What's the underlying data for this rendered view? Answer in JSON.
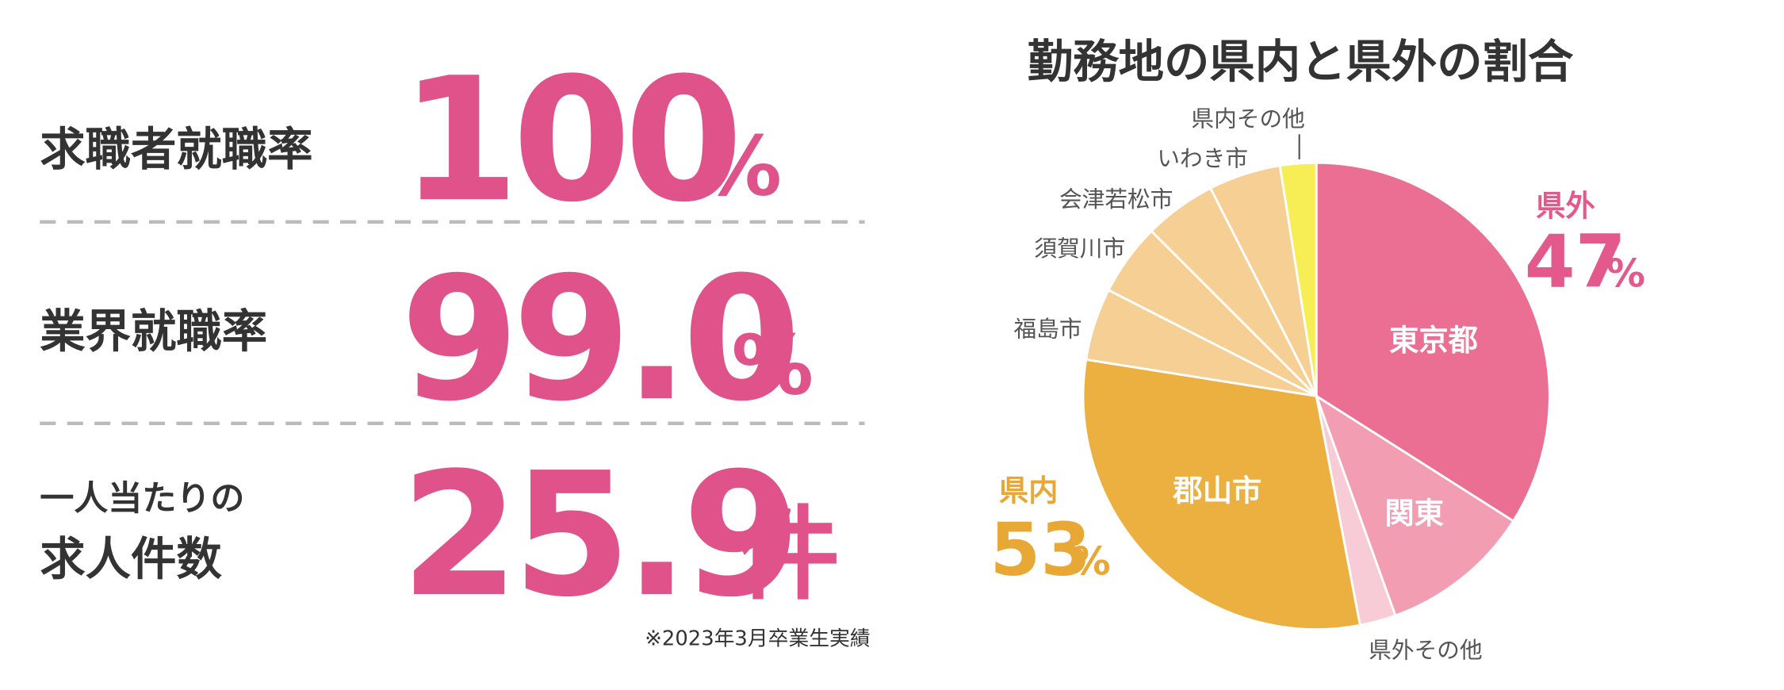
{
  "stats": [
    {
      "label_lines": [
        "求職者就職率"
      ],
      "value": "100",
      "unit": "%"
    },
    {
      "label_lines": [
        "業界就職率"
      ],
      "value": "99.0",
      "unit": "%"
    },
    {
      "label_lines": [
        "一人当たりの",
        "求人件数"
      ],
      "value": "25.9",
      "unit": "件"
    }
  ],
  "note": "※2023年3月卒業生実績",
  "chart_data": {
    "type": "pie",
    "title": "勤務地の県内と県外の割合",
    "categories": [
      "東京都",
      "関東",
      "県外その他",
      "郡山市",
      "福島市",
      "須賀川市",
      "会津若松市",
      "いわき市",
      "県内その他"
    ],
    "values": [
      34,
      10.5,
      2.5,
      30.5,
      5,
      5,
      5,
      5,
      2.5
    ],
    "colors": [
      "#ea6f92",
      "#f29db1",
      "#f8ccd6",
      "#ebb03f",
      "#f5cf93",
      "#f5cf93",
      "#f5cf93",
      "#f5cf93",
      "#f7ed55"
    ],
    "groups": [
      {
        "label": "県外",
        "value": 47,
        "unit": "%",
        "color": "#e4598b"
      },
      {
        "label": "県内",
        "value": 53,
        "unit": "%",
        "color": "#e8a835"
      }
    ]
  }
}
